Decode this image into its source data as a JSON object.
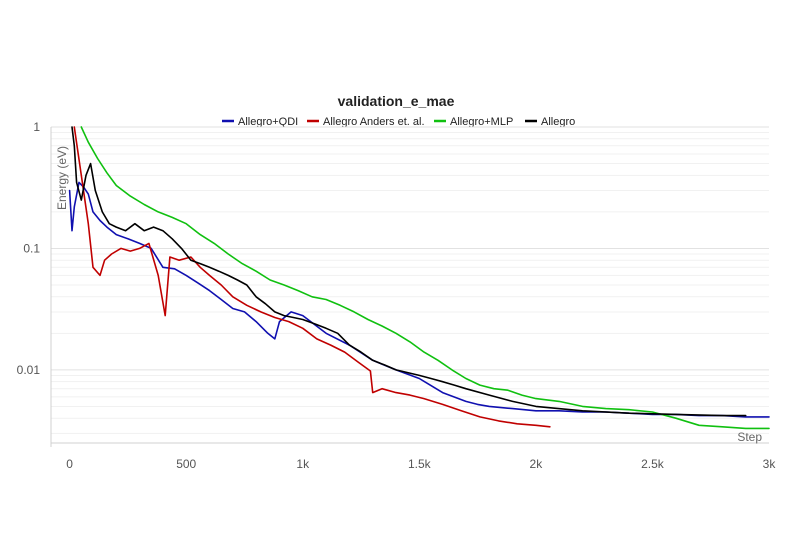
{
  "chart_data": {
    "type": "line",
    "title": "validation_e_mae",
    "xlabel": "Step",
    "ylabel": "Energy (eV)",
    "xlim": [
      -80,
      3000
    ],
    "ylim": [
      0.0025,
      1
    ],
    "yscale": "log",
    "grid": true,
    "legend_position": "top",
    "x_ticks": [
      0,
      500,
      1000,
      1500,
      2000,
      2500,
      3000
    ],
    "x_tick_labels": [
      "0",
      "500",
      "1k",
      "1.5k",
      "2k",
      "2.5k",
      "3k"
    ],
    "y_ticks": [
      1,
      0.1,
      0.01
    ],
    "y_tick_labels": [
      "1",
      "0.1",
      "0.01"
    ],
    "series": [
      {
        "name": "Allegro+QDI",
        "color": "#1010b0",
        "x": [
          0,
          10,
          20,
          40,
          60,
          80,
          100,
          130,
          160,
          200,
          250,
          300,
          350,
          400,
          450,
          500,
          550,
          600,
          650,
          700,
          750,
          800,
          850,
          880,
          900,
          950,
          1000,
          1100,
          1200,
          1300,
          1400,
          1500,
          1600,
          1700,
          1750,
          1800,
          1900,
          2000,
          2100,
          2200,
          2300,
          2400,
          2500,
          2600,
          2700,
          2800,
          2900,
          3000
        ],
        "y": [
          0.3,
          0.14,
          0.22,
          0.35,
          0.32,
          0.28,
          0.2,
          0.17,
          0.15,
          0.13,
          0.12,
          0.11,
          0.1,
          0.07,
          0.068,
          0.06,
          0.052,
          0.045,
          0.038,
          0.032,
          0.03,
          0.025,
          0.02,
          0.018,
          0.025,
          0.03,
          0.028,
          0.02,
          0.016,
          0.012,
          0.01,
          0.0085,
          0.0065,
          0.0055,
          0.0052,
          0.005,
          0.0048,
          0.0046,
          0.0046,
          0.0045,
          0.0045,
          0.0044,
          0.0043,
          0.0043,
          0.0042,
          0.0042,
          0.0041,
          0.0041
        ]
      },
      {
        "name": "Allegro Anders et. al.",
        "color": "#c00000",
        "x": [
          20,
          50,
          80,
          100,
          130,
          150,
          180,
          220,
          260,
          300,
          340,
          380,
          410,
          430,
          470,
          520,
          560,
          600,
          650,
          700,
          760,
          820,
          880,
          940,
          1000,
          1060,
          1120,
          1180,
          1240,
          1290,
          1300,
          1340,
          1400,
          1460,
          1520,
          1600,
          1680,
          1760,
          1840,
          1920,
          2000,
          2060
        ],
        "y": [
          1.0,
          0.4,
          0.16,
          0.07,
          0.06,
          0.08,
          0.09,
          0.1,
          0.095,
          0.1,
          0.11,
          0.06,
          0.028,
          0.085,
          0.08,
          0.085,
          0.07,
          0.06,
          0.05,
          0.04,
          0.034,
          0.03,
          0.027,
          0.025,
          0.022,
          0.018,
          0.016,
          0.014,
          0.0115,
          0.0098,
          0.0065,
          0.007,
          0.0065,
          0.0062,
          0.0058,
          0.0052,
          0.0046,
          0.0041,
          0.0038,
          0.0036,
          0.0035,
          0.0034
        ]
      },
      {
        "name": "Allegro+MLP",
        "color": "#10c010",
        "x": [
          50,
          80,
          120,
          160,
          200,
          260,
          320,
          380,
          440,
          500,
          560,
          620,
          680,
          740,
          800,
          860,
          920,
          980,
          1040,
          1100,
          1160,
          1220,
          1280,
          1340,
          1400,
          1460,
          1520,
          1580,
          1640,
          1700,
          1760,
          1820,
          1880,
          1940,
          2000,
          2100,
          2200,
          2300,
          2400,
          2500,
          2600,
          2700,
          2800,
          2900,
          3000
        ],
        "y": [
          1.0,
          0.75,
          0.55,
          0.42,
          0.33,
          0.27,
          0.23,
          0.2,
          0.18,
          0.16,
          0.13,
          0.11,
          0.09,
          0.075,
          0.065,
          0.055,
          0.05,
          0.045,
          0.04,
          0.038,
          0.034,
          0.03,
          0.026,
          0.023,
          0.02,
          0.017,
          0.014,
          0.012,
          0.01,
          0.0085,
          0.0075,
          0.007,
          0.0068,
          0.0062,
          0.0058,
          0.0055,
          0.005,
          0.0048,
          0.0047,
          0.0045,
          0.004,
          0.0035,
          0.0034,
          0.0033,
          0.0033
        ]
      },
      {
        "name": "Allegro",
        "color": "#000000",
        "x": [
          10,
          20,
          30,
          50,
          70,
          90,
          110,
          140,
          170,
          200,
          240,
          280,
          320,
          360,
          400,
          440,
          480,
          520,
          560,
          600,
          640,
          680,
          720,
          760,
          800,
          840,
          880,
          920,
          960,
          1000,
          1050,
          1100,
          1150,
          1200,
          1250,
          1300,
          1350,
          1400,
          1450,
          1500,
          1550,
          1600,
          1650,
          1700,
          1800,
          1900,
          2000,
          2200,
          2400,
          2600,
          2800,
          2900
        ],
        "y": [
          1.0,
          0.7,
          0.35,
          0.25,
          0.4,
          0.5,
          0.3,
          0.2,
          0.16,
          0.15,
          0.14,
          0.16,
          0.14,
          0.15,
          0.14,
          0.12,
          0.1,
          0.08,
          0.075,
          0.07,
          0.065,
          0.06,
          0.055,
          0.05,
          0.04,
          0.035,
          0.03,
          0.028,
          0.027,
          0.026,
          0.024,
          0.022,
          0.02,
          0.016,
          0.014,
          0.012,
          0.011,
          0.01,
          0.0095,
          0.009,
          0.0085,
          0.008,
          0.0075,
          0.007,
          0.0062,
          0.0055,
          0.005,
          0.0046,
          0.0044,
          0.0043,
          0.0042,
          0.0042
        ]
      }
    ]
  }
}
